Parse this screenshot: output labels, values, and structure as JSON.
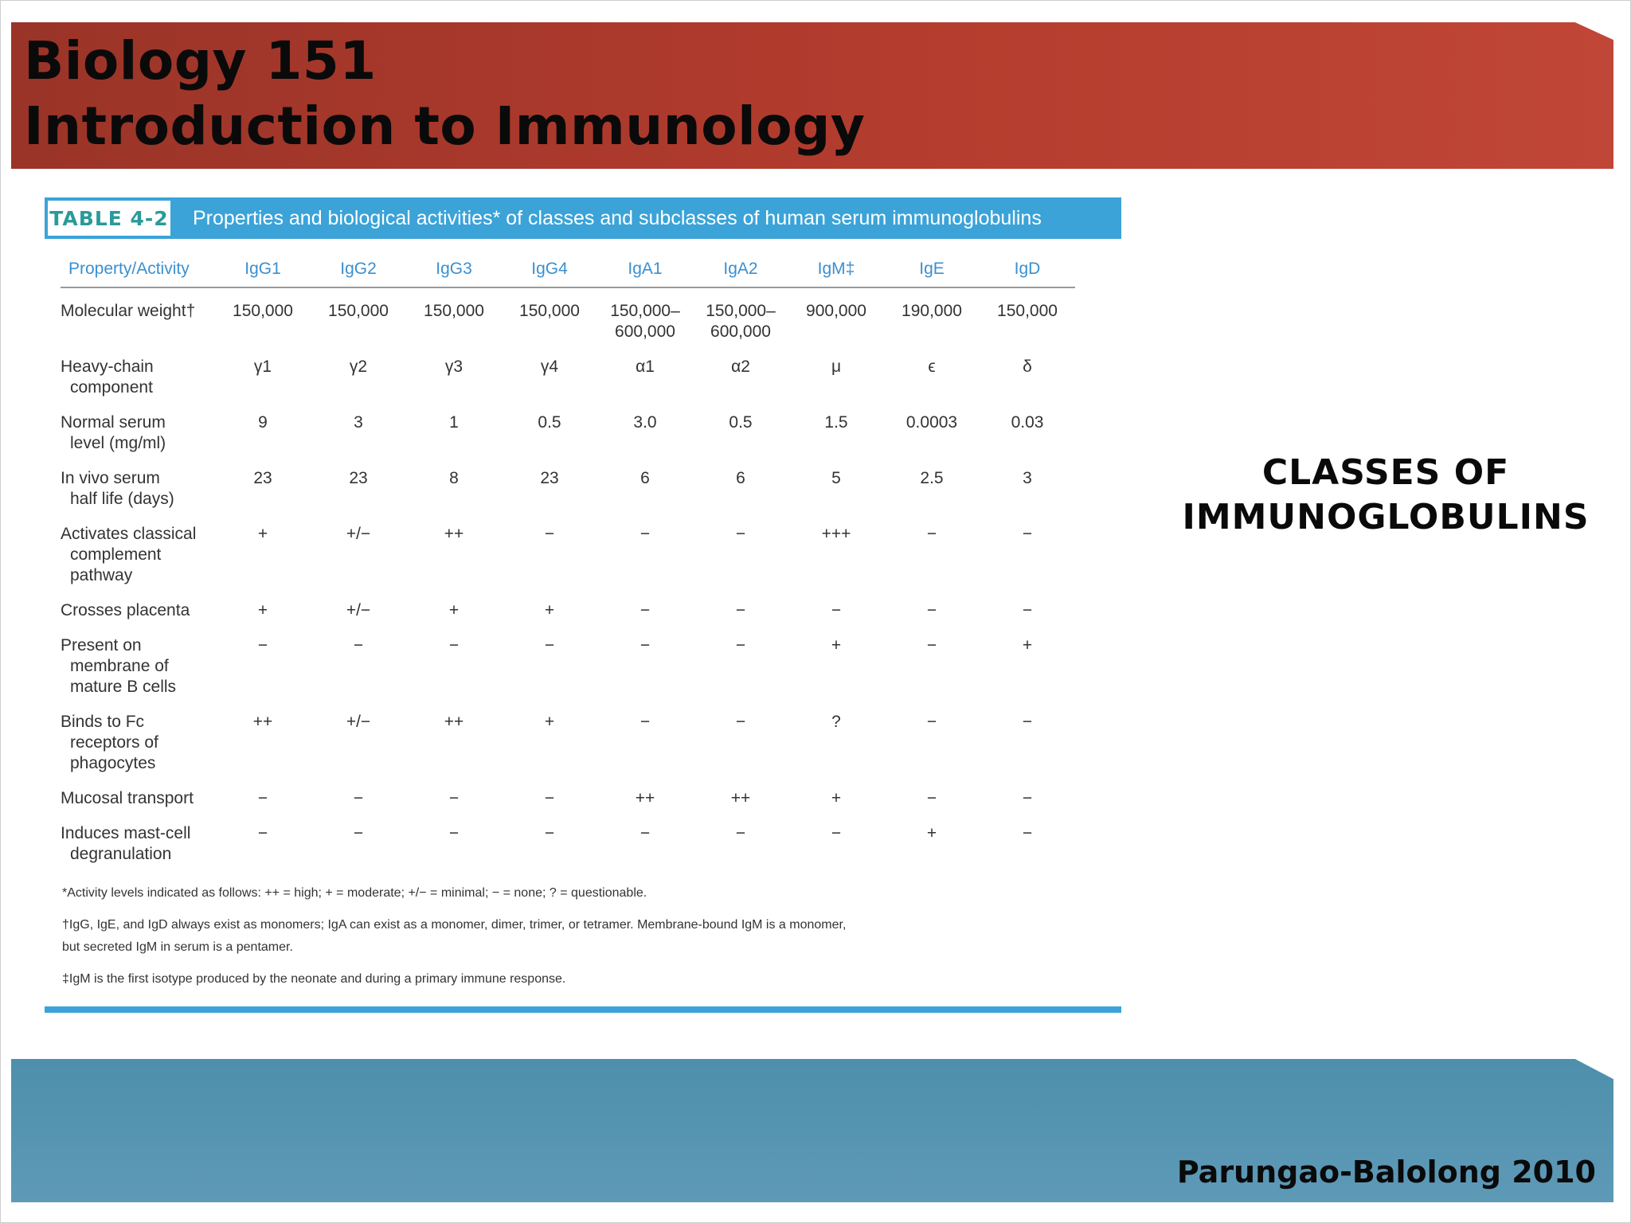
{
  "slide": {
    "title_line1": "Biology 151",
    "title_line2": "Introduction to Immunology",
    "side_label_line1": "CLASSES OF",
    "side_label_line2": "IMMUNOGLOBULINS",
    "author": "Parungao-Balolong 2010",
    "colors": {
      "header": "#b33c2e",
      "footer": "#5e9ab7",
      "table_accent": "#3ba3d8"
    }
  },
  "table": {
    "tag": "TABLE 4-2",
    "caption": "Properties and biological activities* of classes and subclasses of human serum immunoglobulins",
    "headers": [
      "Property/Activity",
      "IgG1",
      "IgG2",
      "IgG3",
      "IgG4",
      "IgA1",
      "IgA2",
      "IgM‡",
      "IgE",
      "IgD"
    ],
    "rows": [
      {
        "p1": "Molecular weight†",
        "p2": "",
        "values": [
          "150,000",
          "150,000",
          "150,000",
          "150,000",
          "150,000–\n600,000",
          "150,000–\n600,000",
          "900,000",
          "190,000",
          "150,000"
        ]
      },
      {
        "p1": "Heavy-chain",
        "p2": "component",
        "values": [
          "γ1",
          "γ2",
          "γ3",
          "γ4",
          "α1",
          "α2",
          "μ",
          "ϵ",
          "δ"
        ]
      },
      {
        "p1": "Normal serum",
        "p2": "level (mg/ml)",
        "values": [
          "9",
          "3",
          "1",
          "0.5",
          "3.0",
          "0.5",
          "1.5",
          "0.0003",
          "0.03"
        ]
      },
      {
        "p1": "In vivo serum",
        "p2": "half life (days)",
        "values": [
          "23",
          "23",
          "8",
          "23",
          "6",
          "6",
          "5",
          "2.5",
          "3"
        ]
      },
      {
        "p1": "Activates classical",
        "p2": "complement\npathway",
        "values": [
          "+",
          "+/−",
          "++",
          "−",
          "−",
          "−",
          "+++",
          "−",
          "−"
        ]
      },
      {
        "p1": "Crosses placenta",
        "p2": "",
        "values": [
          "+",
          "+/−",
          "+",
          "+",
          "−",
          "−",
          "−",
          "−",
          "−"
        ]
      },
      {
        "p1": "Present on",
        "p2": "membrane of\nmature B cells",
        "values": [
          "−",
          "−",
          "−",
          "−",
          "−",
          "−",
          "+",
          "−",
          "+"
        ]
      },
      {
        "p1": "Binds to Fc",
        "p2": "receptors of\nphagocytes",
        "values": [
          "++",
          "+/−",
          "++",
          "+",
          "−",
          "−",
          "?",
          "−",
          "−"
        ]
      },
      {
        "p1": "Mucosal transport",
        "p2": "",
        "values": [
          "−",
          "−",
          "−",
          "−",
          "++",
          "++",
          "+",
          "−",
          "−"
        ]
      },
      {
        "p1": "Induces mast-cell",
        "p2": "degranulation",
        "values": [
          "−",
          "−",
          "−",
          "−",
          "−",
          "−",
          "−",
          "+",
          "−"
        ]
      }
    ],
    "footnotes": [
      "*Activity levels indicated as follows: ++ = high; + = moderate; +/− = minimal; − = none; ? = questionable.",
      "†IgG, IgE, and IgD always exist as monomers; IgA can exist as a monomer, dimer, trimer, or tetramer. Membrane-bound IgM is a monomer, but secreted IgM in serum is a pentamer.",
      "‡IgM is the first isotype produced by the neonate and during a primary immune response."
    ]
  }
}
